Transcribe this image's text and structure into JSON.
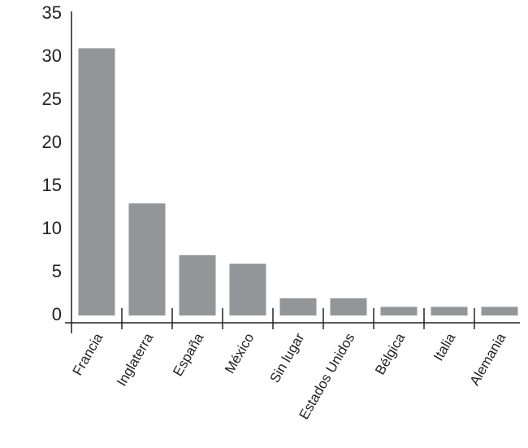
{
  "chart_data": {
    "type": "bar",
    "categories": [
      "Francia",
      "Inglaterra",
      "España",
      "México",
      "Sin lugar",
      "Estados Unidos",
      "Bélgica",
      "Italia",
      "Alemania"
    ],
    "values": [
      31,
      13,
      7,
      6,
      2,
      2,
      1,
      1,
      1
    ],
    "color": "#939598",
    "ylim": [
      0,
      35
    ],
    "yticks": [
      0,
      5,
      10,
      15,
      20,
      25,
      30,
      35
    ],
    "grid": false
  }
}
